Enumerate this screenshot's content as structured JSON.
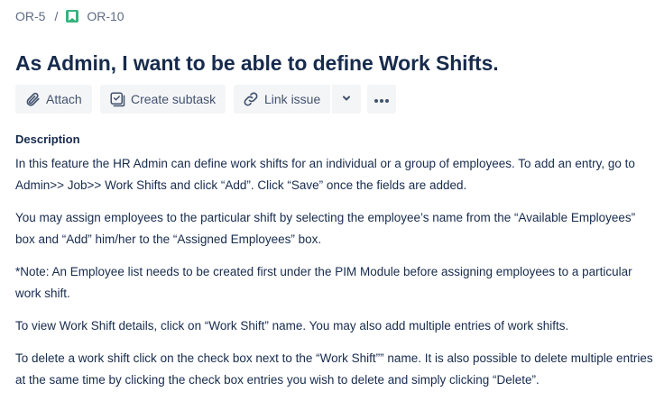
{
  "breadcrumb": {
    "parent": "OR-5",
    "separator": "/",
    "current": "OR-10",
    "current_icon": "story-bookmark-icon"
  },
  "issue": {
    "title": "As Admin, I want to be able to define Work Shifts."
  },
  "toolbar": {
    "attach_label": "Attach",
    "create_subtask_label": "Create subtask",
    "link_issue_label": "Link issue"
  },
  "description": {
    "heading": "Description",
    "paragraphs": [
      "In this feature the HR Admin can define work shifts for an individual or a group of employees. To add an entry, go to Admin>> Job>> Work Shifts and click “Add”. Click “Save” once the fields are added.",
      "You may assign employees to the particular shift by selecting the employee’s name from the “Available Employees” box and “Add” him/her to the “Assigned Employees” box.",
      "*Note: An Employee list needs to be created first under the PIM Module before assigning employees to a particular work shift.",
      "To view Work Shift details, click on “Work Shift” name. You may also add multiple entries of work shifts.",
      "To delete a work shift click on the check box next to the “Work Shift”” name. It is also possible to delete multiple entries at the same time by clicking the check box entries you wish to delete and simply clicking “Delete”."
    ]
  },
  "colors": {
    "text": "#172b4d",
    "subtle": "#5e6c84",
    "button_bg": "#f4f5f7",
    "button_text": "#42526e",
    "story_green": "#36b37e"
  }
}
